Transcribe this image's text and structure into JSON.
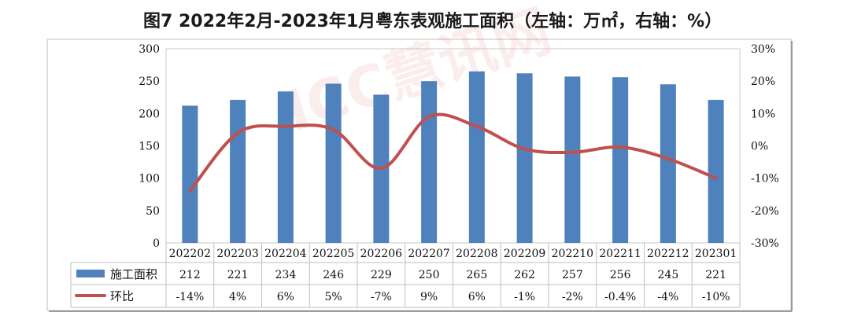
{
  "page": {
    "title": "图7 2022年2月-2023年1月粤东表观施工面积（左轴：万㎡，右轴：%）",
    "watermark": "ICC慧讯网"
  },
  "chart_data": {
    "type": "bar",
    "categories": [
      "202202",
      "202203",
      "202204",
      "202205",
      "202206",
      "202207",
      "202208",
      "202209",
      "202210",
      "202211",
      "202212",
      "202301"
    ],
    "series": [
      {
        "name": "施工面积",
        "type": "bar",
        "axis": "left",
        "color": "#4f81bd",
        "values": [
          212,
          221,
          234,
          246,
          229,
          250,
          265,
          262,
          257,
          256,
          245,
          221
        ],
        "labels": [
          "212",
          "221",
          "234",
          "246",
          "229",
          "250",
          "265",
          "262",
          "257",
          "256",
          "245",
          "221"
        ]
      },
      {
        "name": "环比",
        "type": "line",
        "axis": "right",
        "color": "#c0504d",
        "values": [
          -14,
          4,
          6,
          5,
          -7,
          9,
          6,
          -1,
          -2,
          -0.4,
          -4,
          -10
        ],
        "labels": [
          "-14%",
          "4%",
          "6%",
          "5%",
          "-7%",
          "9%",
          "6%",
          "-1%",
          "-2%",
          "-0.4%",
          "-4%",
          "-10%"
        ]
      }
    ],
    "y_left": {
      "ylim": [
        0,
        300
      ],
      "ticks": [
        "0",
        "50",
        "100",
        "150",
        "200",
        "250",
        "300"
      ]
    },
    "y_right": {
      "ylim": [
        -30,
        30
      ],
      "ticks": [
        "-30%",
        "-20%",
        "-10%",
        "0%",
        "10%",
        "20%",
        "30%"
      ]
    },
    "grid": false,
    "legend": "data-table-below"
  }
}
